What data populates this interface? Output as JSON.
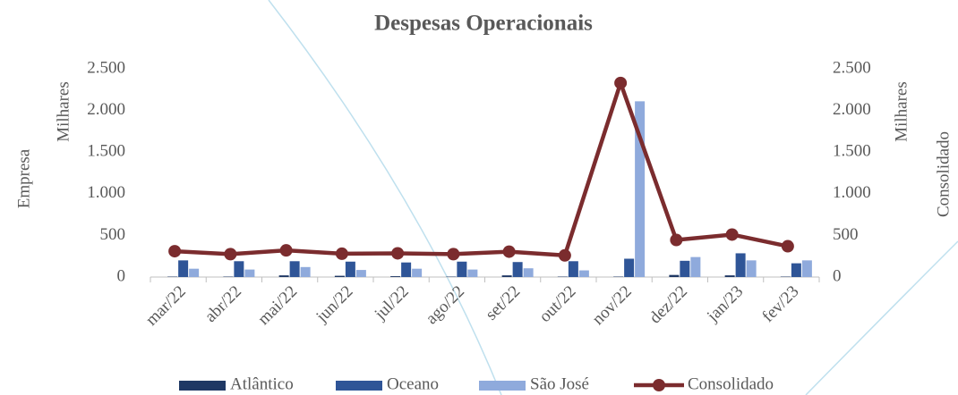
{
  "chart_data": {
    "type": "bar",
    "title": "Despesas Operacionais",
    "ylabel": "Empresa",
    "ylabel_unit": "Milhares",
    "y2label": "Consolidado",
    "y2label_unit": "Milhares",
    "categories": [
      "mar/22",
      "abr/22",
      "mai/22",
      "jun/22",
      "jul/22",
      "ago/22",
      "set/22",
      "out/22",
      "nov/22",
      "dez/22",
      "jan/23",
      "fev/23"
    ],
    "series": [
      {
        "name": "Atlântico",
        "color": "#1f3864",
        "type": "bar",
        "values": [
          5,
          5,
          20,
          15,
          10,
          5,
          20,
          5,
          5,
          25,
          20,
          5
        ]
      },
      {
        "name": "Oceano",
        "color": "#2f5597",
        "type": "bar",
        "values": [
          200,
          190,
          190,
          185,
          175,
          185,
          180,
          190,
          220,
          195,
          285,
          165
        ]
      },
      {
        "name": "São  José",
        "color": "#8faadc",
        "type": "bar",
        "values": [
          100,
          90,
          120,
          85,
          100,
          90,
          105,
          80,
          2110,
          240,
          200,
          200
        ]
      },
      {
        "name": "Consolidado",
        "color": "#7b2c2e",
        "type": "line",
        "axis": "y2",
        "values": [
          310,
          275,
          320,
          280,
          285,
          275,
          305,
          260,
          2330,
          445,
          510,
          370
        ]
      }
    ],
    "ylim": [
      0,
      2500
    ],
    "yticks": [
      0,
      500,
      {
        "value": 1000,
        "label": "1.000"
      },
      {
        "value": 1500,
        "label": "1.500"
      },
      {
        "value": 2000,
        "label": "2.000"
      },
      {
        "value": 2500,
        "label": "2.500"
      }
    ],
    "y2lim": [
      0,
      2500
    ],
    "y2ticks": [
      0,
      500,
      {
        "value": 1000,
        "label": "1.000"
      },
      {
        "value": 1500,
        "label": "1.500"
      },
      {
        "value": 2000,
        "label": "2.000"
      },
      {
        "value": 2500,
        "label": "2.500"
      }
    ],
    "grid": false,
    "legend": "bottom"
  }
}
